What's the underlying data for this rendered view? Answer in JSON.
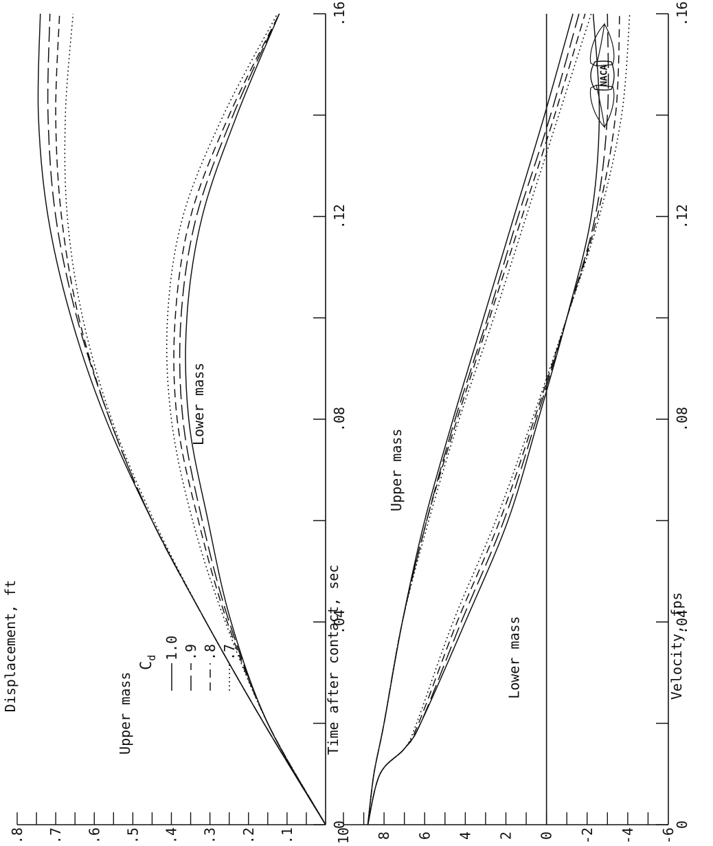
{
  "shared_xlabel": "Time after contact, sec",
  "logo_text": "NACA",
  "legend": {
    "title": "C",
    "title_sub": "d",
    "entries": [
      {
        "label": "1.0",
        "dash": "none"
      },
      {
        "label": ".9",
        "dash": "22 8"
      },
      {
        "label": ".8",
        "dash": "12 7"
      },
      {
        "label": ".7",
        "dash": "2 4"
      }
    ]
  },
  "chart_data": [
    {
      "type": "line",
      "ylabel": "Displacement, ft",
      "xlim": [
        0,
        0.16
      ],
      "ylim": [
        0,
        0.8
      ],
      "xticks": [
        0,
        0.04,
        0.08,
        0.12,
        0.16
      ],
      "xtick_labels": [
        "0",
        ".04",
        ".08",
        ".12",
        ".16"
      ],
      "yticks": [
        0.1,
        0.2,
        0.3,
        0.4,
        0.5,
        0.6,
        0.7,
        0.8
      ],
      "ytick_labels": [
        ".1",
        ".2",
        ".3",
        ".4",
        ".5",
        ".6",
        ".7",
        ".8"
      ],
      "annotations": [
        {
          "text": "Upper mass",
          "x": 0.022,
          "y": 0.52
        },
        {
          "text": "Lower mass",
          "x": 0.083,
          "y": 0.33
        }
      ],
      "series": [
        {
          "group": "Upper mass",
          "cd": "1.0",
          "x": [
            0,
            0.02,
            0.04,
            0.06,
            0.08,
            0.1,
            0.12,
            0.14,
            0.16
          ],
          "y": [
            0,
            0.16,
            0.31,
            0.45,
            0.57,
            0.66,
            0.72,
            0.745,
            0.74
          ]
        },
        {
          "group": "Upper mass",
          "cd": ".9",
          "x": [
            0,
            0.02,
            0.04,
            0.06,
            0.08,
            0.1,
            0.12,
            0.14,
            0.16
          ],
          "y": [
            0,
            0.16,
            0.31,
            0.45,
            0.56,
            0.645,
            0.7,
            0.72,
            0.715
          ]
        },
        {
          "group": "Upper mass",
          "cd": ".8",
          "x": [
            0,
            0.02,
            0.04,
            0.06,
            0.08,
            0.1,
            0.12,
            0.14,
            0.16
          ],
          "y": [
            0,
            0.16,
            0.31,
            0.45,
            0.56,
            0.64,
            0.685,
            0.7,
            0.69
          ]
        },
        {
          "group": "Upper mass",
          "cd": ".7",
          "x": [
            0,
            0.02,
            0.04,
            0.06,
            0.08,
            0.1,
            0.12,
            0.14,
            0.16
          ],
          "y": [
            0,
            0.16,
            0.31,
            0.445,
            0.555,
            0.63,
            0.67,
            0.675,
            0.655
          ]
        },
        {
          "group": "Lower mass",
          "cd": "1.0",
          "x": [
            0,
            0.02,
            0.04,
            0.06,
            0.08,
            0.1,
            0.12,
            0.14,
            0.16
          ],
          "y": [
            0,
            0.15,
            0.245,
            0.305,
            0.355,
            0.36,
            0.32,
            0.23,
            0.12
          ]
        },
        {
          "group": "Lower mass",
          "cd": ".9",
          "x": [
            0,
            0.02,
            0.04,
            0.06,
            0.08,
            0.1,
            0.12,
            0.14,
            0.16
          ],
          "y": [
            0,
            0.15,
            0.25,
            0.32,
            0.37,
            0.375,
            0.335,
            0.24,
            0.12
          ]
        },
        {
          "group": "Lower mass",
          "cd": ".8",
          "x": [
            0,
            0.02,
            0.04,
            0.06,
            0.08,
            0.1,
            0.12,
            0.14,
            0.16
          ],
          "y": [
            0,
            0.15,
            0.255,
            0.33,
            0.385,
            0.39,
            0.35,
            0.25,
            0.12
          ]
        },
        {
          "group": "Lower mass",
          "cd": ".7",
          "x": [
            0,
            0.02,
            0.04,
            0.06,
            0.08,
            0.1,
            0.12,
            0.14,
            0.16
          ],
          "y": [
            0,
            0.15,
            0.26,
            0.345,
            0.4,
            0.41,
            0.37,
            0.265,
            0.125
          ]
        }
      ]
    },
    {
      "type": "line",
      "ylabel": "Velocity, fps",
      "xlim": [
        0,
        0.16
      ],
      "ylim": [
        -6,
        10
      ],
      "xticks": [
        0,
        0.04,
        0.08,
        0.12,
        0.16
      ],
      "xtick_labels": [
        "0",
        ".04",
        ".08",
        ".12",
        ".16"
      ],
      "yticks": [
        -6,
        -4,
        -2,
        0,
        2,
        4,
        6,
        8,
        10
      ],
      "ytick_labels": [
        "-6",
        "-4",
        "-2",
        "0",
        "2",
        "4",
        "6",
        "8",
        "10"
      ],
      "zero_line": true,
      "annotations": [
        {
          "text": "Upper mass",
          "x": 0.07,
          "y": 7.4
        },
        {
          "text": "Lower mass",
          "x": 0.033,
          "y": 1.6
        }
      ],
      "series": [
        {
          "group": "Upper mass",
          "cd": "1.0",
          "x": [
            0,
            0.01,
            0.02,
            0.04,
            0.06,
            0.08,
            0.1,
            0.12,
            0.14,
            0.16
          ],
          "y": [
            8.8,
            8.5,
            8.0,
            7.1,
            6.0,
            4.6,
            3.1,
            1.6,
            0.1,
            -1.3
          ]
        },
        {
          "group": "Upper mass",
          "cd": ".9",
          "x": [
            0,
            0.01,
            0.02,
            0.04,
            0.06,
            0.08,
            0.1,
            0.12,
            0.14,
            0.16
          ],
          "y": [
            8.8,
            8.5,
            8.0,
            7.1,
            5.9,
            4.5,
            2.9,
            1.4,
            -0.2,
            -1.6
          ]
        },
        {
          "group": "Upper mass",
          "cd": ".8",
          "x": [
            0,
            0.01,
            0.02,
            0.04,
            0.06,
            0.08,
            0.1,
            0.12,
            0.14,
            0.16
          ],
          "y": [
            8.8,
            8.5,
            8.0,
            7.1,
            5.9,
            4.4,
            2.8,
            1.2,
            -0.4,
            -1.9
          ]
        },
        {
          "group": "Upper mass",
          "cd": ".7",
          "x": [
            0,
            0.01,
            0.02,
            0.04,
            0.06,
            0.08,
            0.1,
            0.12,
            0.14,
            0.16
          ],
          "y": [
            8.8,
            8.5,
            8.0,
            7.1,
            5.8,
            4.3,
            2.6,
            1.0,
            -0.6,
            -2.2
          ]
        },
        {
          "group": "Lower mass",
          "cd": "1.0",
          "x": [
            0,
            0.01,
            0.015,
            0.02,
            0.04,
            0.06,
            0.08,
            0.1,
            0.12,
            0.14,
            0.16
          ],
          "y": [
            8.8,
            8.2,
            7.0,
            6.2,
            4.0,
            1.9,
            0.4,
            -1.0,
            -2.2,
            -2.6,
            -2.3
          ]
        },
        {
          "group": "Lower mass",
          "cd": ".9",
          "x": [
            0,
            0.01,
            0.015,
            0.02,
            0.04,
            0.06,
            0.08,
            0.1,
            0.12,
            0.14,
            0.16
          ],
          "y": [
            8.8,
            8.2,
            7.0,
            6.2,
            4.2,
            2.1,
            0.5,
            -1.0,
            -2.4,
            -3.0,
            -3.0
          ]
        },
        {
          "group": "Lower mass",
          "cd": ".8",
          "x": [
            0,
            0.01,
            0.015,
            0.02,
            0.04,
            0.06,
            0.08,
            0.1,
            0.12,
            0.14,
            0.16
          ],
          "y": [
            8.8,
            8.2,
            7.0,
            6.3,
            4.4,
            2.3,
            0.6,
            -1.0,
            -2.5,
            -3.4,
            -3.6
          ]
        },
        {
          "group": "Lower mass",
          "cd": ".7",
          "x": [
            0,
            0.01,
            0.015,
            0.02,
            0.04,
            0.06,
            0.08,
            0.1,
            0.12,
            0.14,
            0.16
          ],
          "y": [
            8.8,
            8.2,
            7.0,
            6.4,
            4.6,
            2.5,
            0.7,
            -1.0,
            -2.6,
            -3.7,
            -4.1
          ]
        }
      ]
    }
  ]
}
